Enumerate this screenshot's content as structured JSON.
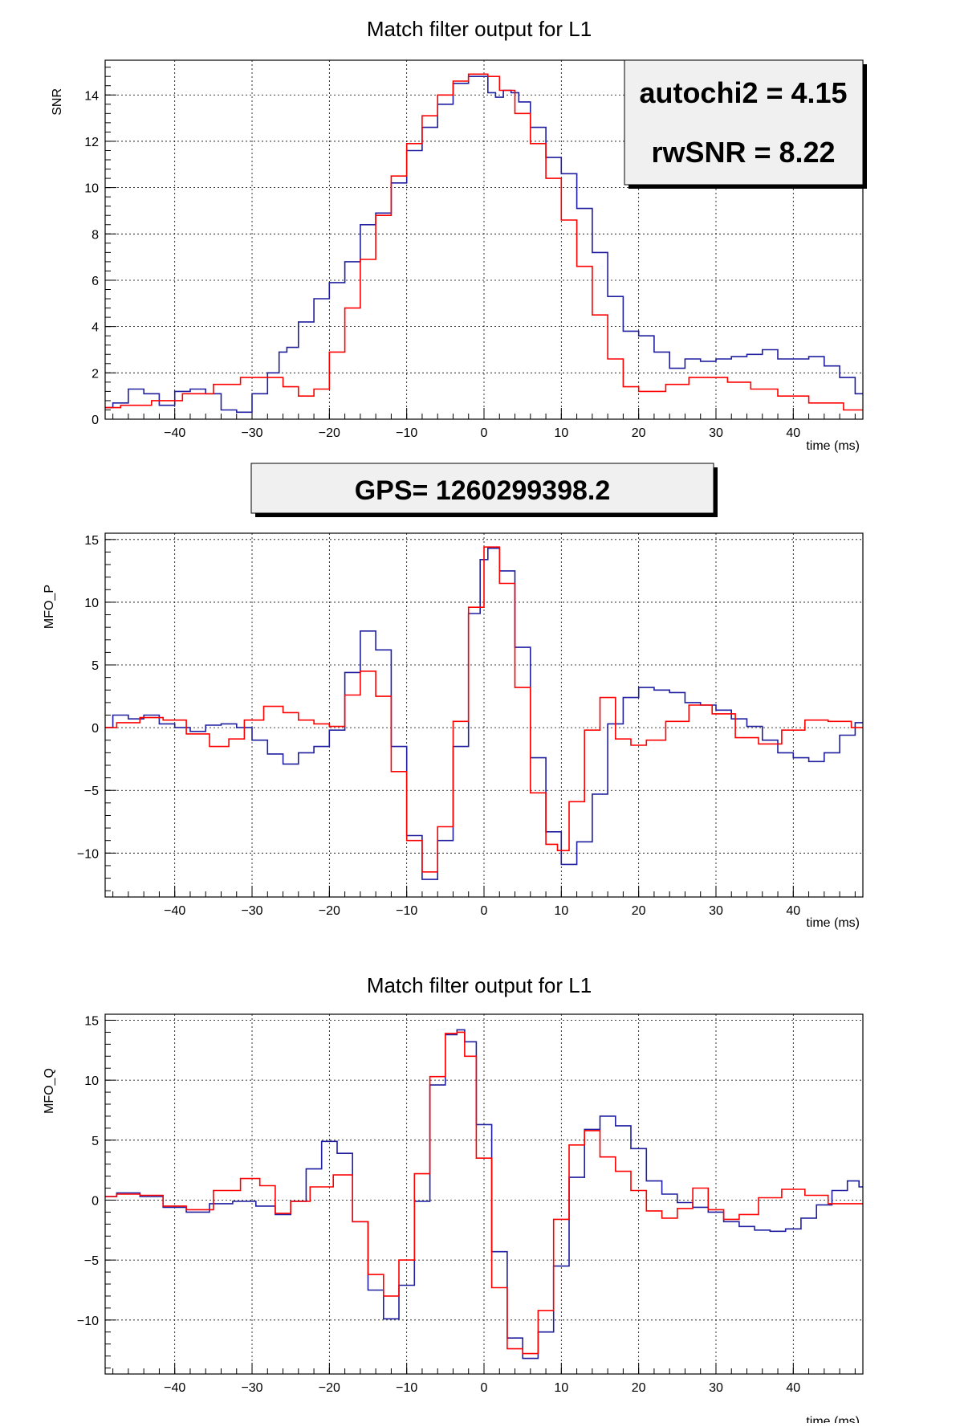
{
  "colors": {
    "data": "#1f1fa0",
    "template": "#ff0000",
    "grid": "#000000",
    "box_fill": "#f0f0f0"
  },
  "gps_box": {
    "text": "GPS= 1260299398.2"
  },
  "stat_box": {
    "line1": "autochi2 = 4.15",
    "line2": "rwSNR = 8.22"
  },
  "chart_data": [
    {
      "type": "line",
      "title": "Match filter output for L1",
      "xlabel": "time (ms)",
      "ylabel": "SNR",
      "xlim": [
        -49,
        49
      ],
      "ylim": [
        0,
        15.5
      ],
      "xticks": [
        -40,
        -30,
        -20,
        -10,
        0,
        10,
        20,
        30,
        40
      ],
      "yticks": [
        0,
        2,
        4,
        6,
        8,
        10,
        12,
        14
      ],
      "grid": true,
      "series": [
        {
          "color": "#1f1fa0",
          "x": [
            -49,
            -47,
            -45,
            -43,
            -41,
            -39,
            -37,
            -35,
            -33,
            -31,
            -29,
            -27,
            -26,
            -25,
            -23,
            -21,
            -19,
            -17,
            -15,
            -13,
            -11,
            -9,
            -7,
            -5,
            -3,
            -1,
            0,
            1,
            2,
            3,
            4,
            5,
            7,
            9,
            11,
            13,
            15,
            17,
            19,
            21,
            23,
            25,
            27,
            29,
            31,
            33,
            35,
            37,
            39,
            41,
            43,
            45,
            47,
            49
          ],
          "y": [
            0.5,
            0.7,
            1.3,
            1.1,
            0.6,
            1.2,
            1.3,
            1.1,
            0.4,
            0.3,
            1.1,
            2.0,
            2.9,
            3.1,
            4.2,
            5.2,
            5.9,
            6.8,
            8.4,
            8.9,
            10.2,
            11.6,
            12.6,
            13.6,
            14.5,
            14.8,
            14.8,
            14.1,
            13.9,
            14.2,
            14.1,
            13.7,
            12.6,
            11.3,
            10.6,
            9.1,
            7.2,
            5.3,
            3.8,
            3.6,
            2.9,
            2.2,
            2.6,
            2.5,
            2.6,
            2.7,
            2.8,
            3.0,
            2.6,
            2.6,
            2.7,
            2.3,
            1.8,
            1.1
          ]
        },
        {
          "color": "#ff0000",
          "x": [
            -49,
            -45,
            -41,
            -37,
            -33,
            -30,
            -27,
            -25,
            -23,
            -21,
            -19,
            -17,
            -15,
            -13,
            -11,
            -9,
            -7,
            -5,
            -3,
            -1,
            0,
            1,
            3,
            5,
            7,
            9,
            11,
            13,
            15,
            17,
            19,
            21,
            22,
            25,
            28,
            30,
            33,
            36,
            40,
            44,
            49
          ],
          "y": [
            0.5,
            0.6,
            0.8,
            1.1,
            1.5,
            1.8,
            1.8,
            1.4,
            1.0,
            1.3,
            2.9,
            4.8,
            6.9,
            8.8,
            10.5,
            11.9,
            13.1,
            14.0,
            14.6,
            14.9,
            14.9,
            14.8,
            14.2,
            13.2,
            11.9,
            10.4,
            8.6,
            6.6,
            4.5,
            2.6,
            1.4,
            1.2,
            1.2,
            1.5,
            1.8,
            1.8,
            1.6,
            1.3,
            1.0,
            0.7,
            0.4
          ]
        }
      ]
    },
    {
      "type": "line",
      "title": "",
      "xlabel": "time (ms)",
      "ylabel": "MFO_P",
      "xlim": [
        -49,
        49
      ],
      "ylim": [
        -13.5,
        15.5
      ],
      "xticks": [
        -40,
        -30,
        -20,
        -10,
        0,
        10,
        20,
        30,
        40
      ],
      "yticks": [
        -10,
        -5,
        0,
        5,
        10,
        15
      ],
      "grid": true,
      "series": [
        {
          "color": "#1f1fa0",
          "x": [
            -49,
            -47,
            -45,
            -43,
            -41,
            -39,
            -37,
            -35,
            -33,
            -31,
            -29,
            -27,
            -25,
            -23,
            -21,
            -19,
            -17,
            -15,
            -13,
            -11,
            -9,
            -7,
            -5,
            -3,
            -1,
            0,
            1,
            3,
            5,
            7,
            9,
            11,
            13,
            15,
            17,
            19,
            21,
            23,
            25,
            27,
            29,
            31,
            33,
            35,
            37,
            39,
            41,
            43,
            45,
            47,
            49
          ],
          "y": [
            0,
            1.0,
            0.7,
            1.0,
            0.3,
            0,
            -0.3,
            0.2,
            0.3,
            0,
            -1.0,
            -2.1,
            -2.9,
            -2.0,
            -1.5,
            -0.2,
            4.4,
            7.7,
            6.2,
            -1.5,
            -8.6,
            -12.1,
            -9.0,
            -1.5,
            9.1,
            13.4,
            14.3,
            12.5,
            6.4,
            -2.4,
            -8.3,
            -10.9,
            -9.1,
            -5.3,
            0.3,
            2.4,
            3.2,
            3.0,
            2.8,
            2.0,
            1.8,
            1.4,
            0.7,
            0.1,
            -1.0,
            -2.0,
            -2.4,
            -2.7,
            -2.0,
            -0.6,
            0.4
          ]
        },
        {
          "color": "#ff0000",
          "x": [
            -49,
            -46,
            -43,
            -40,
            -37,
            -34,
            -32,
            -30,
            -27,
            -25,
            -23,
            -21,
            -19,
            -17,
            -15,
            -13,
            -11,
            -9,
            -7,
            -5,
            -3,
            -1,
            1,
            3,
            5,
            7,
            9,
            10,
            12,
            14,
            16,
            18,
            20,
            22,
            25,
            28,
            31,
            34,
            37,
            40,
            43,
            46,
            49
          ],
          "y": [
            0,
            0.4,
            0.8,
            0.6,
            -0.5,
            -1.5,
            -0.9,
            0.6,
            1.7,
            1.2,
            0.6,
            0.3,
            0.1,
            2.6,
            4.5,
            2.5,
            -3.5,
            -9.0,
            -11.5,
            -7.9,
            0.5,
            9.6,
            14.4,
            11.5,
            3.2,
            -5.2,
            -9.3,
            -9.8,
            -5.9,
            -0.2,
            2.4,
            -0.9,
            -1.4,
            -1.0,
            0.5,
            1.8,
            1.1,
            -0.8,
            -1.3,
            -0.2,
            0.6,
            0.5,
            0
          ]
        }
      ]
    },
    {
      "type": "line",
      "title": "Match filter output for L1",
      "xlabel": "time (ms)",
      "ylabel": "MFO_Q",
      "xlim": [
        -49,
        49
      ],
      "ylim": [
        -14.5,
        15.5
      ],
      "xticks": [
        -40,
        -30,
        -20,
        -10,
        0,
        10,
        20,
        30,
        40
      ],
      "yticks": [
        -10,
        -5,
        0,
        5,
        10,
        15
      ],
      "grid": true,
      "series": [
        {
          "color": "#1f1fa0",
          "x": [
            -49,
            -46,
            -43,
            -40,
            -37,
            -34,
            -31,
            -28,
            -26,
            -24,
            -22,
            -20,
            -18,
            -16,
            -14,
            -12,
            -10,
            -8,
            -6,
            -4,
            -3,
            -2,
            0,
            2,
            4,
            6,
            8,
            10,
            12,
            14,
            16,
            18,
            20,
            22,
            24,
            26,
            28,
            30,
            32,
            34,
            36,
            38,
            40,
            42,
            44,
            46,
            48,
            49
          ],
          "y": [
            0.3,
            0.6,
            0.3,
            -0.6,
            -1.0,
            -0.3,
            -0.1,
            -0.5,
            -1.2,
            -0.1,
            2.6,
            4.9,
            3.9,
            -1.8,
            -7.5,
            -9.9,
            -7.1,
            -0.1,
            9.6,
            13.8,
            14.2,
            13.2,
            6.3,
            -4.3,
            -11.5,
            -13.2,
            -11.0,
            -5.5,
            1.9,
            5.9,
            7.0,
            6.2,
            4.3,
            1.6,
            0.5,
            -0.2,
            -0.6,
            -1.0,
            -1.8,
            -2.2,
            -2.5,
            -2.6,
            -2.4,
            -1.5,
            -0.4,
            0.8,
            1.6,
            1.1
          ]
        },
        {
          "color": "#ff0000",
          "x": [
            -49,
            -46,
            -43,
            -40,
            -37,
            -33,
            -30,
            -28,
            -26,
            -24,
            -21,
            -18,
            -16,
            -14,
            -12,
            -10,
            -8,
            -6,
            -4,
            -3,
            -2,
            0,
            2,
            4,
            6,
            8,
            10,
            12,
            14,
            16,
            18,
            20,
            22,
            24,
            26,
            28,
            30,
            32,
            34,
            37,
            40,
            43,
            46,
            49
          ],
          "y": [
            0.3,
            0.5,
            0.4,
            -0.5,
            -0.8,
            0.8,
            1.8,
            1.2,
            -1.1,
            -0.1,
            1.1,
            2.1,
            -1.8,
            -6.2,
            -8.0,
            -5.0,
            2.2,
            10.3,
            13.9,
            14.0,
            12.0,
            3.5,
            -7.3,
            -12.4,
            -12.8,
            -9.2,
            -1.6,
            4.6,
            5.8,
            3.6,
            2.4,
            0.8,
            -0.9,
            -1.5,
            -0.7,
            1.0,
            -0.8,
            -1.6,
            -1.2,
            0.2,
            0.9,
            0.4,
            -0.3,
            -0.3
          ]
        }
      ]
    }
  ]
}
